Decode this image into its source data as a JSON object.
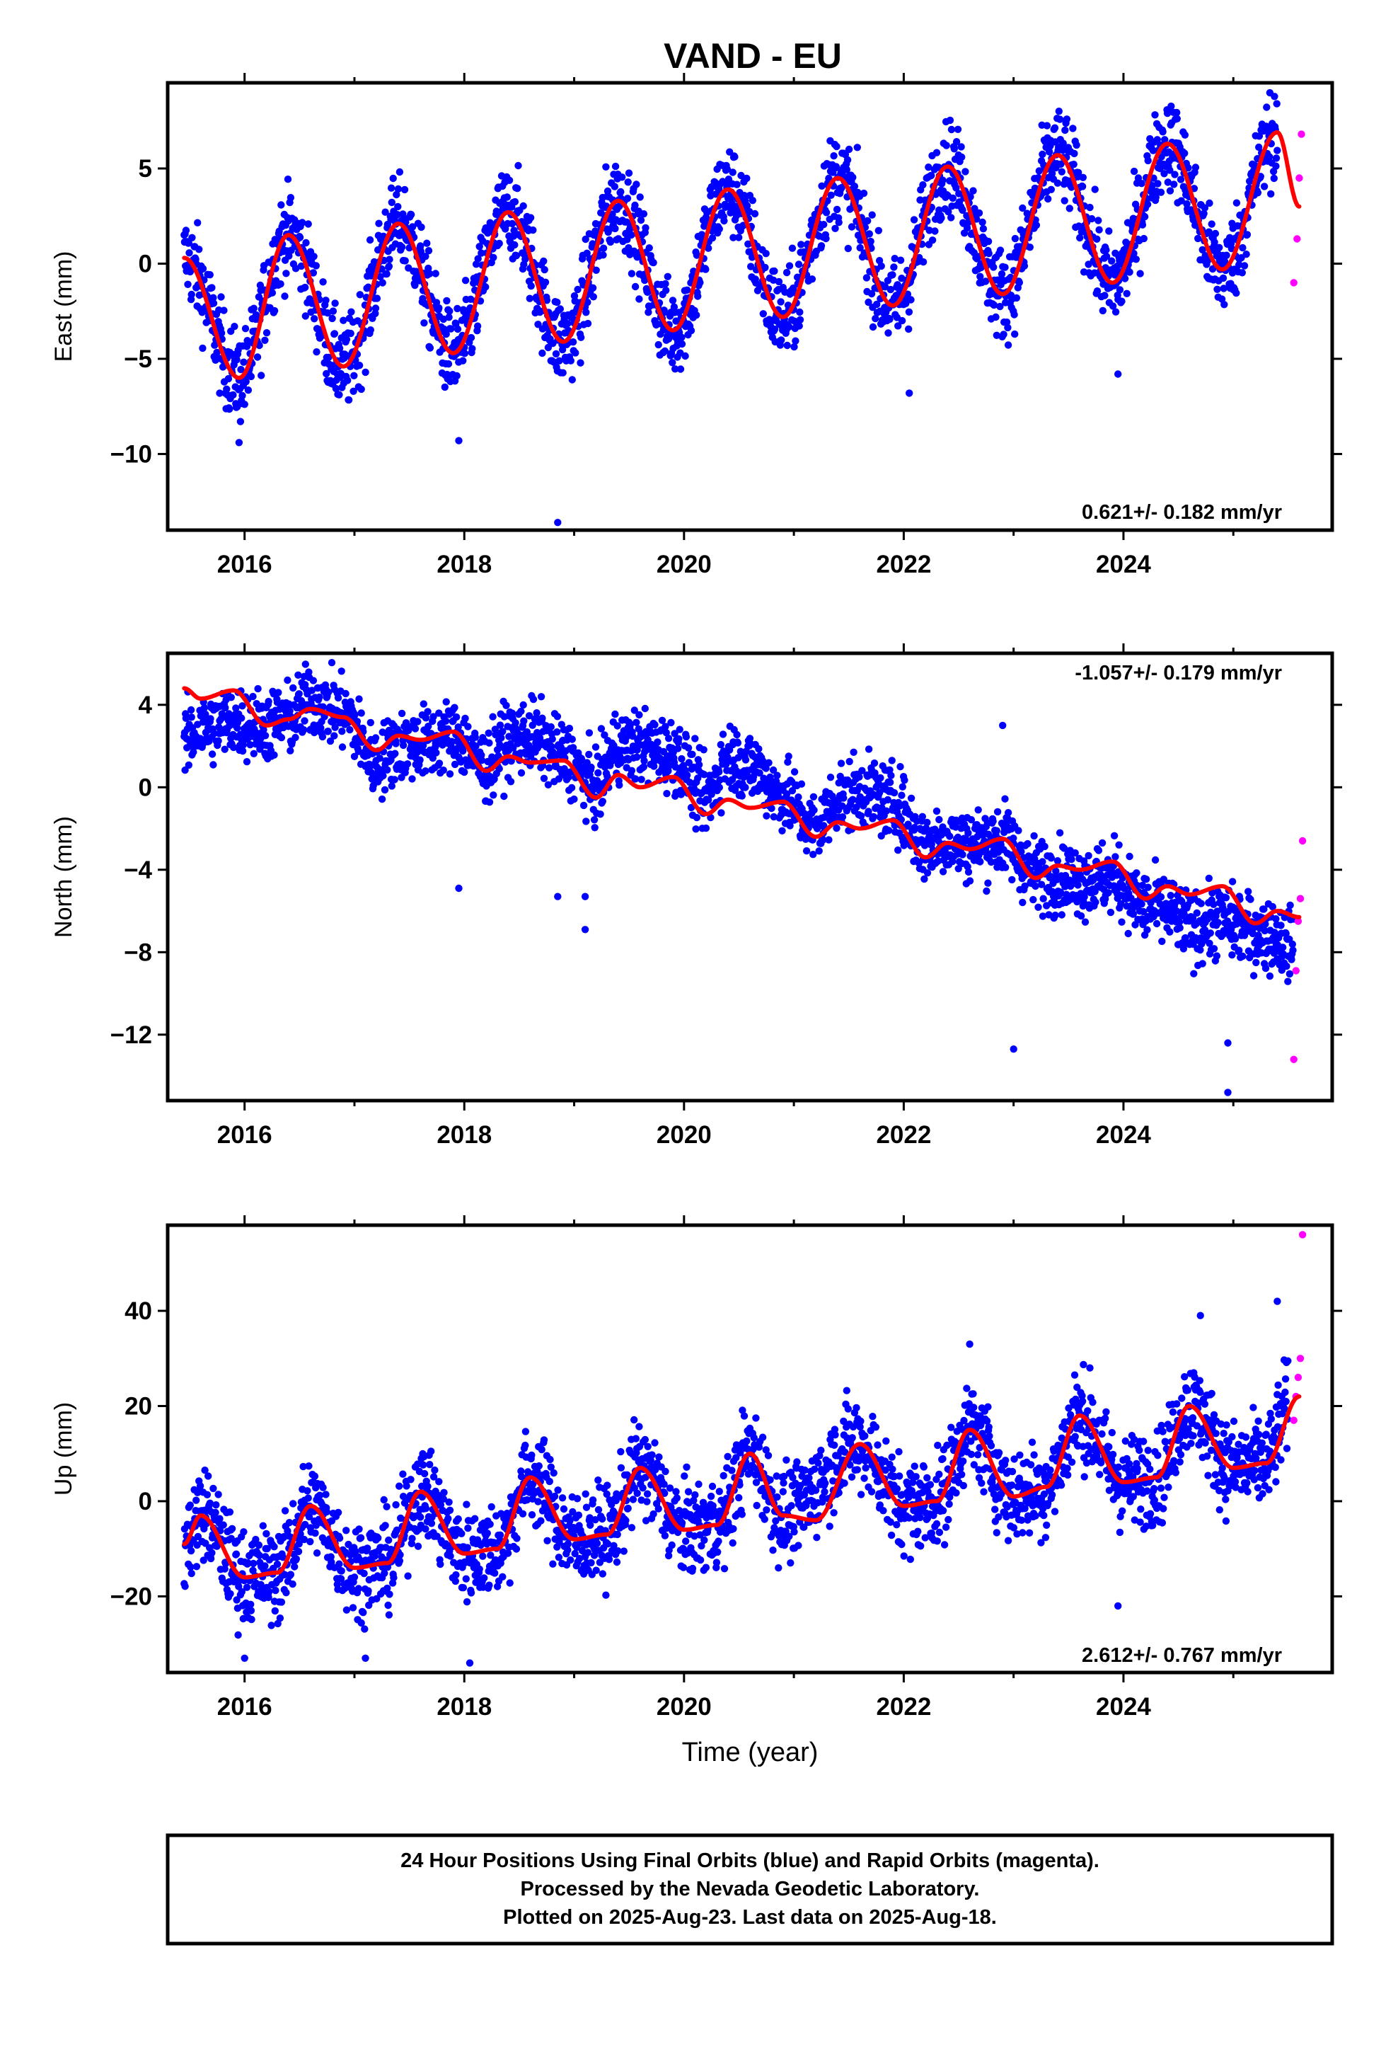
{
  "title": "VAND - EU",
  "xlabel": "Time (year)",
  "colors": {
    "final_orbits": "#0000ff",
    "rapid_orbits": "#ff00ff",
    "model_fit": "#ff0000",
    "frame": "#000000"
  },
  "footer": {
    "line1": "24 Hour Positions Using Final Orbits (blue) and Rapid Orbits (magenta).",
    "line2": "Processed by the Nevada Geodetic Laboratory.",
    "line3": "Plotted on 2025-Aug-23. Last data on 2025-Aug-18."
  },
  "panels": [
    {
      "ylabel": "East (mm)",
      "rate": "0.621+/- 0.182 mm/yr",
      "rate_position": "bottom-right",
      "xtick_labels": [
        "2016",
        "2018",
        "2020",
        "2022",
        "2024"
      ],
      "ytick_labels": [
        "5",
        "0",
        "−5",
        "−10"
      ]
    },
    {
      "ylabel": "North (mm)",
      "rate": "-1.057+/- 0.179 mm/yr",
      "rate_position": "top-right",
      "xtick_labels": [
        "2016",
        "2018",
        "2020",
        "2022",
        "2024"
      ],
      "ytick_labels": [
        "4",
        "0",
        "−4",
        "−8",
        "−12"
      ]
    },
    {
      "ylabel": "Up (mm)",
      "rate": "2.612+/- 0.767 mm/yr",
      "rate_position": "bottom-right",
      "xtick_labels": [
        "2016",
        "2018",
        "2020",
        "2022",
        "2024"
      ],
      "ytick_labels": [
        "40",
        "20",
        "0",
        "−20"
      ]
    }
  ],
  "chart_data": [
    {
      "type": "scatter",
      "component": "East",
      "xlim": [
        2015.3,
        2025.9
      ],
      "ylim": [
        -14,
        9.5
      ],
      "xticks": [
        2016,
        2018,
        2020,
        2022,
        2024
      ],
      "yticks": [
        5,
        0,
        -5,
        -10
      ],
      "grid": false,
      "series": [
        {
          "style": "line",
          "x": [
            2015.45,
            2015.95,
            2016.4,
            2016.9,
            2017.4,
            2017.9,
            2018.4,
            2018.9,
            2019.4,
            2019.9,
            2020.4,
            2020.9,
            2021.4,
            2021.9,
            2022.4,
            2022.9,
            2023.4,
            2023.9,
            2024.4,
            2024.9,
            2025.4,
            2025.6
          ],
          "y": [
            0.3,
            -6.0,
            1.5,
            -5.4,
            2.1,
            -4.7,
            2.7,
            -4.1,
            3.3,
            -3.5,
            3.9,
            -2.8,
            4.5,
            -2.2,
            5.1,
            -1.6,
            5.7,
            -1.0,
            6.3,
            -0.3,
            6.9,
            3.0
          ]
        },
        {
          "style": "points",
          "x": [
            2015.45,
            2015.95,
            2016.4,
            2016.9,
            2017.4,
            2017.9,
            2018.4,
            2018.9,
            2019.4,
            2019.9,
            2020.4,
            2020.9,
            2021.4,
            2021.9,
            2022.4,
            2022.9,
            2023.4,
            2023.9,
            2024.4,
            2024.9,
            2025.4
          ],
          "y": [
            0.3,
            -6.0,
            1.5,
            -5.4,
            2.1,
            -4.7,
            2.7,
            -4.1,
            3.3,
            -3.5,
            3.9,
            -2.8,
            4.5,
            -2.2,
            5.1,
            -1.6,
            5.7,
            -1.0,
            6.3,
            -0.3,
            6.9
          ],
          "scatter": 2.2,
          "extra_points": [
            [
              2015.95,
              -9.4
            ],
            [
              2017.95,
              -9.3
            ],
            [
              2018.85,
              -13.6
            ],
            [
              2022.05,
              -6.8
            ],
            [
              2023.95,
              -5.8
            ]
          ]
        },
        {
          "style": "rapid",
          "x": [
            2025.55,
            2025.58,
            2025.6,
            2025.62
          ],
          "y": [
            -1.0,
            1.3,
            4.5,
            6.8
          ]
        }
      ]
    },
    {
      "type": "scatter",
      "component": "North",
      "xlim": [
        2015.3,
        2025.9
      ],
      "ylim": [
        -15.2,
        6.5
      ],
      "xticks": [
        2016,
        2018,
        2020,
        2022,
        2024
      ],
      "yticks": [
        4,
        0,
        -4,
        -8,
        -12
      ],
      "grid": false,
      "series": [
        {
          "style": "line",
          "x": [
            2015.45,
            2015.6,
            2015.9,
            2016.2,
            2016.4,
            2016.6,
            2016.9,
            2017.2,
            2017.4,
            2017.6,
            2017.9,
            2018.2,
            2018.4,
            2018.6,
            2018.9,
            2019.2,
            2019.4,
            2019.6,
            2019.9,
            2020.2,
            2020.4,
            2020.6,
            2020.9,
            2021.2,
            2021.4,
            2021.6,
            2021.9,
            2022.2,
            2022.4,
            2022.6,
            2022.9,
            2023.2,
            2023.4,
            2023.6,
            2023.9,
            2024.2,
            2024.4,
            2024.6,
            2024.9,
            2025.2,
            2025.4,
            2025.6
          ],
          "y": [
            4.8,
            4.3,
            4.7,
            3.0,
            3.3,
            3.8,
            3.4,
            1.8,
            2.5,
            2.3,
            2.7,
            0.8,
            1.5,
            1.2,
            1.3,
            -0.5,
            0.6,
            0.0,
            0.5,
            -1.3,
            -0.6,
            -1.0,
            -0.7,
            -2.4,
            -1.7,
            -2.0,
            -1.6,
            -3.4,
            -2.7,
            -3.0,
            -2.5,
            -4.4,
            -3.8,
            -4.0,
            -3.6,
            -5.4,
            -4.8,
            -5.2,
            -4.8,
            -6.6,
            -6.0,
            -6.3
          ]
        },
        {
          "style": "points",
          "x": [
            2015.45,
            2015.6,
            2015.9,
            2016.2,
            2016.4,
            2016.6,
            2016.9,
            2017.2,
            2017.4,
            2017.6,
            2017.9,
            2018.2,
            2018.4,
            2018.6,
            2018.9,
            2019.2,
            2019.4,
            2019.6,
            2019.9,
            2020.2,
            2020.4,
            2020.6,
            2020.9,
            2021.2,
            2021.4,
            2021.6,
            2021.9,
            2022.2,
            2022.4,
            2022.6,
            2022.9,
            2023.2,
            2023.4,
            2023.6,
            2023.9,
            2024.2,
            2024.4,
            2024.6,
            2024.9,
            2025.2,
            2025.4,
            2025.55
          ],
          "y": [
            2.2,
            2.8,
            3.2,
            3.0,
            3.3,
            4.2,
            3.6,
            1.2,
            2.0,
            2.1,
            2.5,
            1.0,
            2.3,
            2.5,
            1.5,
            0.0,
            2.0,
            2.0,
            1.6,
            -0.5,
            1.5,
            1.0,
            -0.4,
            -2.0,
            -0.5,
            -0.2,
            -0.7,
            -2.8,
            -2.5,
            -2.8,
            -2.5,
            -4.2,
            -4.3,
            -4.5,
            -4.4,
            -5.8,
            -6.0,
            -6.8,
            -6.5,
            -7.0,
            -7.3,
            -7.8
          ],
          "scatter": 1.6,
          "extra_points": [
            [
              2017.95,
              -4.9
            ],
            [
              2018.85,
              -5.3
            ],
            [
              2019.1,
              -5.3
            ],
            [
              2019.1,
              -6.9
            ],
            [
              2022.9,
              3.0
            ],
            [
              2023.0,
              -12.7
            ],
            [
              2024.95,
              -14.8
            ],
            [
              2024.95,
              -12.4
            ]
          ]
        },
        {
          "style": "rapid",
          "x": [
            2025.55,
            2025.57,
            2025.59,
            2025.61,
            2025.63
          ],
          "y": [
            -13.2,
            -8.9,
            -6.5,
            -5.4,
            -2.6
          ]
        }
      ]
    },
    {
      "type": "scatter",
      "component": "Up",
      "xlim": [
        2015.3,
        2025.9
      ],
      "ylim": [
        -36,
        58
      ],
      "xticks": [
        2016,
        2018,
        2020,
        2022,
        2024
      ],
      "yticks": [
        40,
        20,
        0,
        -20
      ],
      "grid": false,
      "series": [
        {
          "style": "line",
          "x": [
            2015.45,
            2015.6,
            2016.0,
            2016.3,
            2016.6,
            2017.0,
            2017.3,
            2017.6,
            2018.0,
            2018.3,
            2018.6,
            2019.0,
            2019.3,
            2019.6,
            2020.0,
            2020.3,
            2020.6,
            2020.9,
            2021.2,
            2021.6,
            2022.0,
            2022.3,
            2022.6,
            2023.0,
            2023.3,
            2023.6,
            2024.0,
            2024.3,
            2024.6,
            2025.0,
            2025.3,
            2025.6
          ],
          "y": [
            -9,
            -3,
            -16,
            -15,
            -1,
            -14,
            -13,
            2,
            -11,
            -10,
            5,
            -8,
            -7,
            7,
            -6,
            -5,
            10,
            -3,
            -4,
            12,
            -1,
            0,
            15,
            1,
            3,
            18,
            4,
            5,
            20,
            7,
            8,
            22
          ]
        },
        {
          "style": "points",
          "x": [
            2015.45,
            2015.6,
            2016.0,
            2016.3,
            2016.6,
            2017.0,
            2017.3,
            2017.6,
            2018.0,
            2018.3,
            2018.6,
            2019.0,
            2019.3,
            2019.6,
            2020.0,
            2020.3,
            2020.6,
            2020.9,
            2021.6,
            2022.0,
            2022.3,
            2022.6,
            2023.0,
            2023.3,
            2023.6,
            2024.0,
            2024.3,
            2024.6,
            2025.0,
            2025.3,
            2025.5
          ],
          "y": [
            -9,
            -3,
            -16,
            -15,
            -1,
            -14,
            -13,
            2,
            -11,
            -10,
            5,
            -8,
            -7,
            7,
            -6,
            -5,
            10,
            -3,
            12,
            -1,
            0,
            15,
            1,
            3,
            18,
            4,
            5,
            20,
            7,
            8,
            20
          ],
          "scatter": 9,
          "extra_points": [
            [
              2016.0,
              -33
            ],
            [
              2017.1,
              -33
            ],
            [
              2018.05,
              -34
            ],
            [
              2022.6,
              33
            ],
            [
              2023.95,
              -22
            ],
            [
              2025.4,
              42
            ],
            [
              2024.7,
              39
            ]
          ]
        },
        {
          "style": "rapid",
          "x": [
            2025.55,
            2025.57,
            2025.59,
            2025.61,
            2025.63
          ],
          "y": [
            17,
            22,
            26,
            30,
            56
          ]
        }
      ]
    }
  ]
}
